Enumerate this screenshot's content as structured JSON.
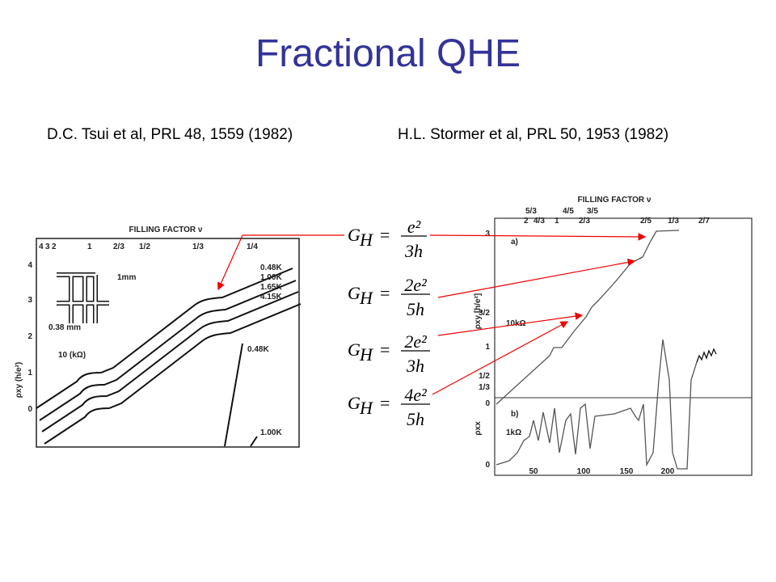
{
  "title": "Fractional QHE",
  "references": [
    "D.C. Tsui et al, PRL 48, 1559 (1982)",
    "H.L. Stormer  et al, PRL 50, 1953 (1982)"
  ],
  "formulas": [
    {
      "lhs": "G",
      "sub": "H",
      "num": "e²",
      "den": "3h"
    },
    {
      "lhs": "G",
      "sub": "H",
      "num": "2e²",
      "den": "5h"
    },
    {
      "lhs": "G",
      "sub": "H",
      "num": "2e²",
      "den": "3h"
    },
    {
      "lhs": "G",
      "sub": "H",
      "num": "4e²",
      "den": "5h"
    }
  ],
  "left_plot": {
    "header": "FILLING FACTOR ν",
    "top_ticks": [
      "4",
      "3",
      "2",
      "1",
      "2/3",
      "1/2",
      "1/3",
      "1/4"
    ],
    "y_label": "ρxy (h/e²)",
    "y_ticks": [
      "0",
      "1",
      "2",
      "3",
      "4"
    ],
    "temperatures": [
      "0.48K",
      "1.00K",
      "1.65K",
      "4.15K"
    ],
    "annotations": [
      "1mm",
      "0.38 mm",
      "10 (kΩ)",
      "0.48K",
      "1.00K"
    ]
  },
  "right_plot": {
    "header": "FILLING FACTOR ν",
    "top_ticks": [
      "5/3",
      "2",
      "4/3",
      "1",
      "4/5",
      "3/5",
      "2/3",
      "2/5",
      "1/3",
      "2/7"
    ],
    "panels": [
      "a)",
      "b)"
    ],
    "y_label_a": "ρxy [h/e²]",
    "y_label_b": "ρxx",
    "scales": [
      "10kΩ",
      "1kΩ"
    ],
    "y_ticks": [
      "3",
      "3/2",
      "1",
      "1/2",
      "1/3",
      "0",
      "0"
    ],
    "x_ticks": [
      "50",
      "100",
      "150",
      "200"
    ]
  }
}
